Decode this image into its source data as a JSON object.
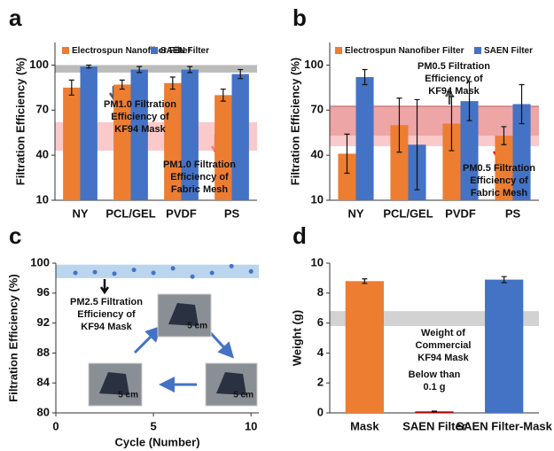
{
  "chart_data": [
    {
      "type": "bar",
      "panel": "a",
      "ylabel": "Filtration Efficiency (%)",
      "categories": [
        "NY",
        "PCL/GEL",
        "PVDF",
        "PS"
      ],
      "ylim": [
        10,
        115
      ],
      "yticks": [
        10,
        40,
        70,
        100
      ],
      "series": [
        {
          "name": "Electrospun Nanofiber Filter",
          "color": "#ed7d31",
          "values": [
            85,
            87,
            88,
            80
          ],
          "errors": [
            5,
            3,
            4,
            4
          ]
        },
        {
          "name": "SAEN Filter",
          "color": "#4472c4",
          "values": [
            99,
            97,
            97,
            94
          ],
          "errors": [
            1,
            2,
            2,
            3
          ]
        }
      ],
      "bands": [
        {
          "range": [
            95,
            100
          ],
          "color": "#9e9e9e"
        },
        {
          "range": [
            43,
            62
          ],
          "color": "#f8b4b4"
        }
      ],
      "annotations": [
        [
          "PM1.0 Filtration",
          "Efficiency of",
          "KF94 Mask"
        ],
        [
          "PM1.0 Filtration",
          "Efficiency of",
          "Fabric Mesh"
        ]
      ]
    },
    {
      "type": "bar",
      "panel": "b",
      "ylabel": "Filtration Efficiency (%)",
      "categories": [
        "NY",
        "PCL/GEL",
        "PVDF",
        "PS"
      ],
      "ylim": [
        10,
        115
      ],
      "yticks": [
        10,
        40,
        70,
        100
      ],
      "series": [
        {
          "name": "Electrospun Nanofiber Filter",
          "color": "#ed7d31",
          "values": [
            41,
            60,
            61,
            53
          ],
          "errors": [
            13,
            18,
            18,
            6
          ]
        },
        {
          "name": "SAEN Filter",
          "color": "#4472c4",
          "values": [
            92,
            47,
            76,
            74
          ],
          "errors": [
            5,
            30,
            13,
            13
          ]
        }
      ],
      "bands": [
        {
          "range": [
            53,
            73
          ],
          "color": "#c0504d"
        },
        {
          "range": [
            46,
            72
          ],
          "color": "#f8b4b4"
        }
      ],
      "annotations": [
        [
          "PM0.5 Filtration",
          "Efficiency of",
          "KF94 Mask"
        ],
        [
          "PM0.5 Filtration",
          "Efficiency of",
          "Fabric Mesh"
        ]
      ]
    },
    {
      "type": "scatter",
      "panel": "c",
      "ylabel": "Filtration Efficiency (%)",
      "xlabel": "Cycle (Number)",
      "x": [
        1,
        2,
        3,
        4,
        5,
        6,
        7,
        8,
        9,
        10
      ],
      "values": [
        98.7,
        98.8,
        98.6,
        99.1,
        98.7,
        99.3,
        98.2,
        98.7,
        99.6,
        98.9
      ],
      "color": "#4472c4",
      "xlim": [
        0,
        10.4
      ],
      "xticks": [
        0,
        5,
        10
      ],
      "ylim": [
        80,
        100
      ],
      "yticks": [
        80,
        84,
        88,
        92,
        96,
        100
      ],
      "bands": [
        {
          "range": [
            98,
            99.8
          ],
          "color": "#9dc3e6"
        }
      ],
      "annotations": [
        [
          "PM2.5 Filtration",
          "Efficiency of",
          "KF94 Mask"
        ]
      ],
      "image_labels": [
        "5 cm",
        "5 cm",
        "5 cm"
      ]
    },
    {
      "type": "bar",
      "panel": "d",
      "ylabel": "Weight (g)",
      "categories": [
        "Mask",
        "SAEN Filter",
        "SAEN Filter-Mask"
      ],
      "values": [
        8.8,
        0.1,
        8.9
      ],
      "errors": [
        0.15,
        0.02,
        0.2
      ],
      "colors": [
        "#ed7d31",
        "#c00000",
        "#4472c4"
      ],
      "ylim": [
        0,
        10
      ],
      "yticks": [
        0,
        2,
        4,
        6,
        8,
        10
      ],
      "bands": [
        {
          "range": [
            5.8,
            6.8
          ],
          "color": "#bfbfbf"
        }
      ],
      "annotations": [
        [
          "Weight of",
          "Commercial",
          "KF94 Mask"
        ],
        [
          "Below than",
          "0.1 g"
        ]
      ]
    }
  ]
}
